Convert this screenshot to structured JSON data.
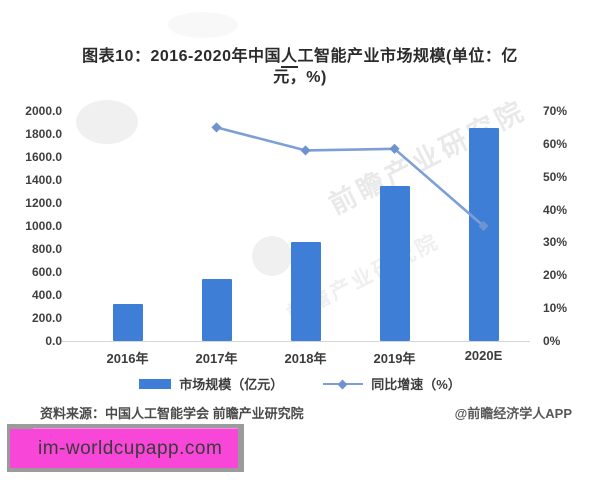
{
  "title": {
    "line1_pre": "图表10：2016-2020年中国",
    "line1_underlined": "人",
    "line1_post": "工智能产业市场规模(单位：亿",
    "line2": "元，%)",
    "full": "图表10：2016-2020年中国人工智能产业市场规模(单位：亿元，%)"
  },
  "chart_data": {
    "type": "bar",
    "combo_types": [
      "bar",
      "line"
    ],
    "title": "图表10：2016-2020年中国人工智能产业市场规模(单位：亿元，%)",
    "categories": [
      "2016年",
      "2017年",
      "2018年",
      "2019年",
      "2020E"
    ],
    "series": [
      {
        "name": "市场规模（亿元）",
        "type": "bar",
        "axis": "left",
        "values": [
          320,
          540,
          860,
          1350,
          1850
        ]
      },
      {
        "name": "同比增速（%）",
        "type": "line",
        "axis": "right",
        "values": [
          null,
          65,
          58,
          58.5,
          35
        ]
      }
    ],
    "left_axis": {
      "min": 0,
      "max": 2000,
      "step": 200,
      "tick_labels": [
        "2000.0",
        "1800.0",
        "1600.0",
        "1400.0",
        "1200.0",
        "1000.0",
        "800.0",
        "600.0",
        "400.0",
        "200.0",
        "0.0"
      ]
    },
    "right_axis": {
      "min": 0,
      "max": 70,
      "step": 10,
      "tick_labels": [
        "70%",
        "60%",
        "50%",
        "40%",
        "30%",
        "20%",
        "10%",
        "0%"
      ]
    },
    "grid": false,
    "legend_position": "bottom"
  },
  "footer": {
    "source": "资料来源：中国人工智能学会 前瞻产业研究院",
    "credit": "@前瞻经济学人APP"
  },
  "watermark": {
    "text": "前瞻产业研究院",
    "link_text": "im-worldcupapp.com"
  },
  "colors": {
    "bar": "#3E7ED6",
    "line": "#7D9FD6",
    "marker": "#6E93CE",
    "magenta": "#F847D8",
    "magenta_light": "#FB8AE7",
    "shadow_gray": "#9B9B9B"
  }
}
